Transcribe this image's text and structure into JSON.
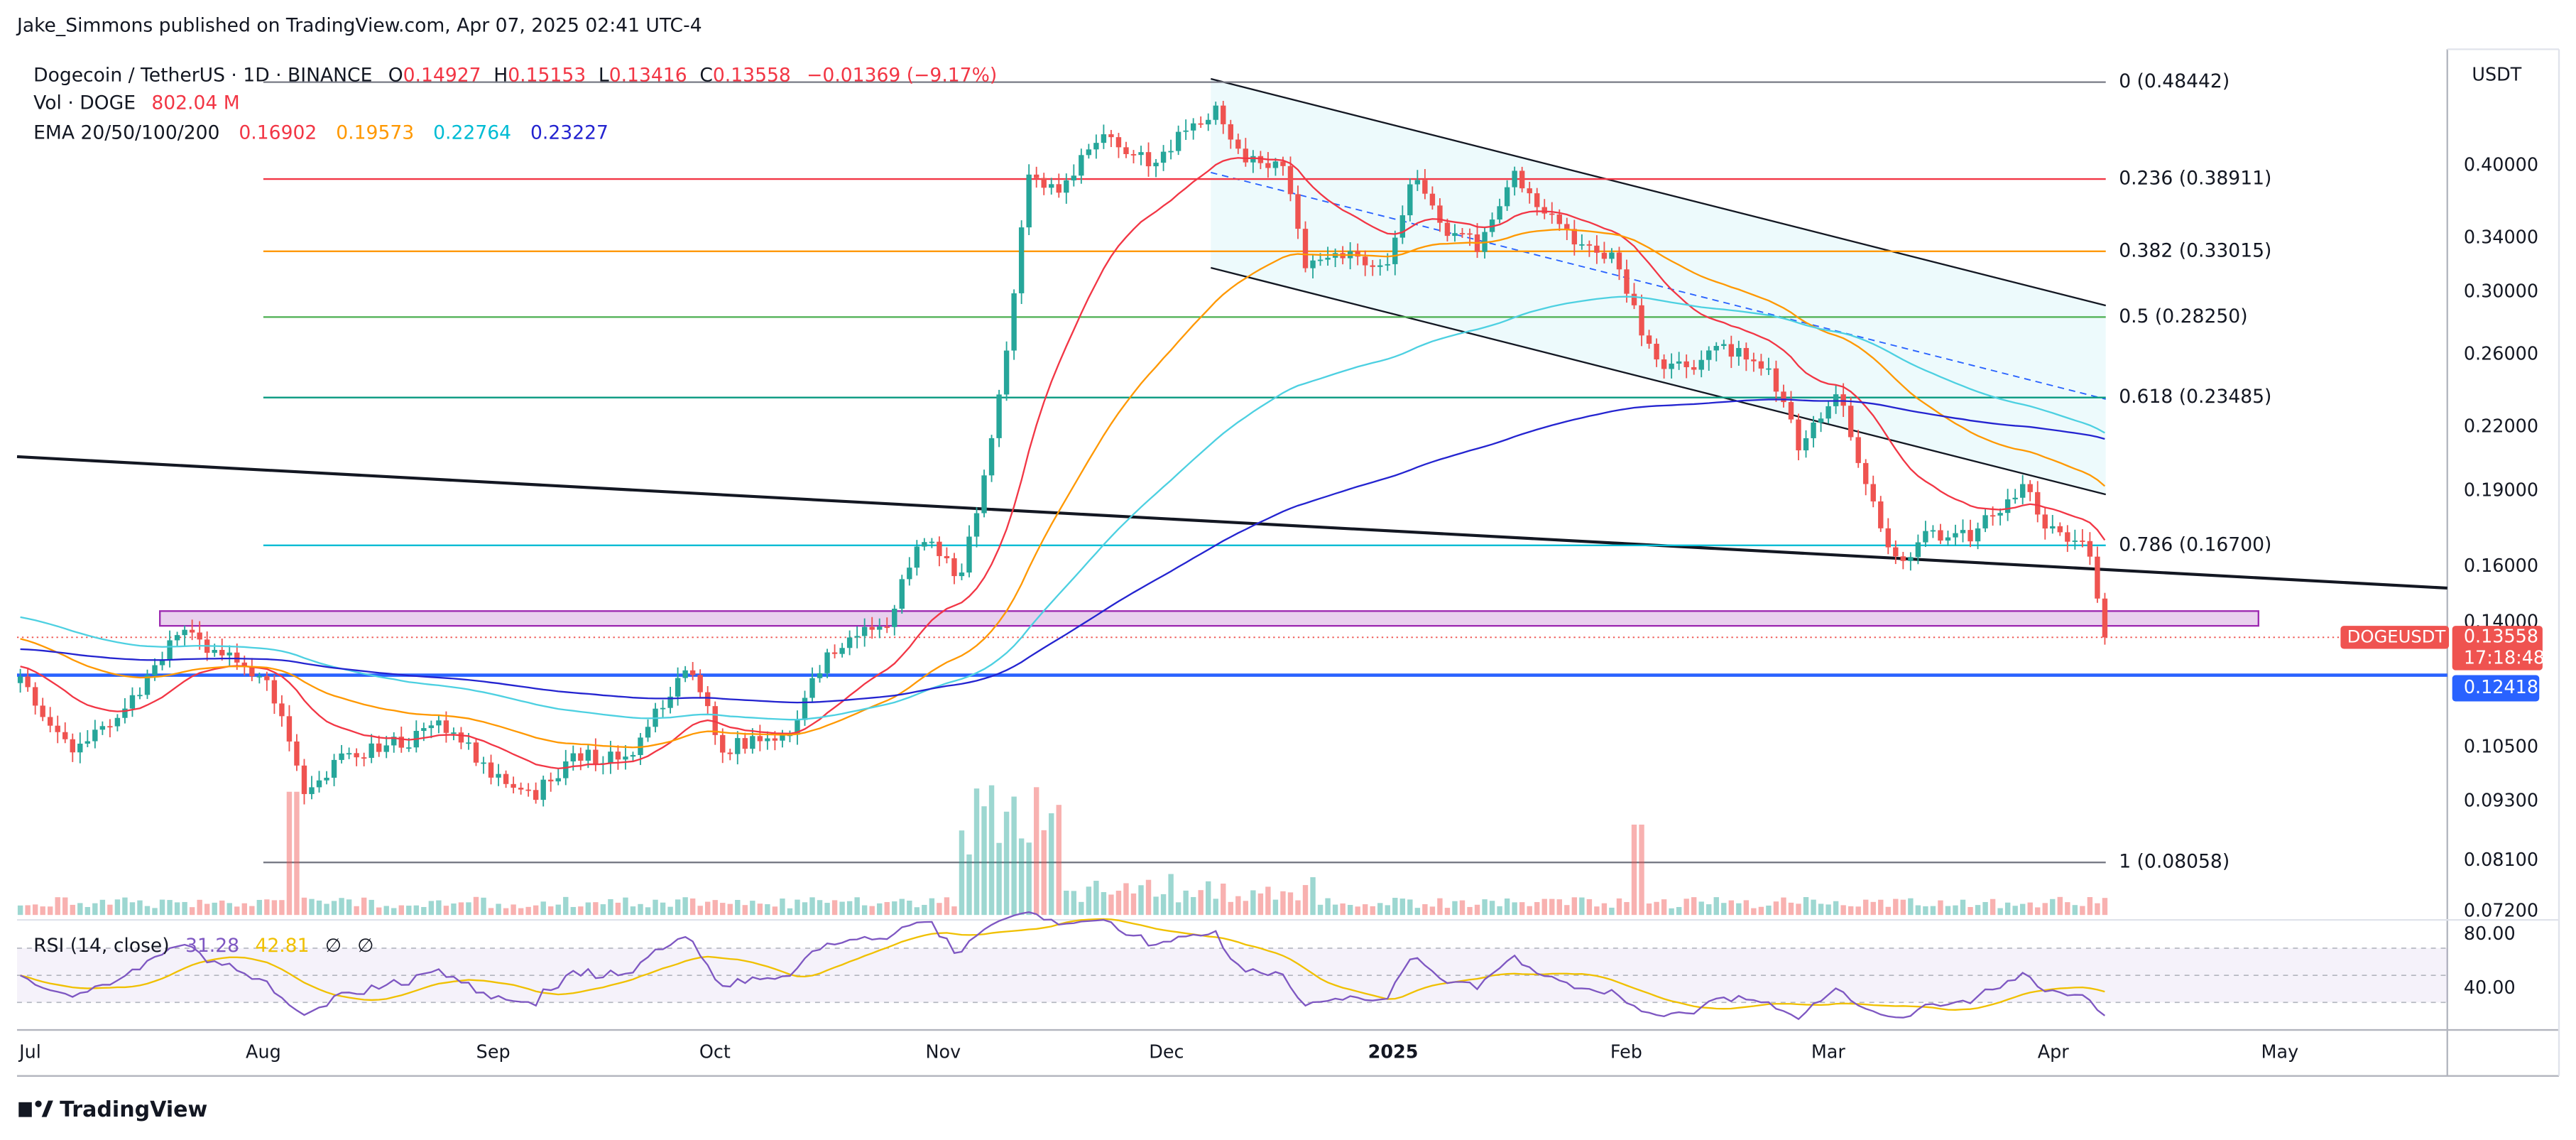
{
  "header": {
    "publisher": "Jake_Simmons published on TradingView.com, Apr 07, 2025 02:41 UTC-4"
  },
  "legend": {
    "symbol": "Dogecoin / TetherUS · 1D · BINANCE",
    "ohlc": [
      {
        "label": "O",
        "value": "0.14927"
      },
      {
        "label": "H",
        "value": "0.15153"
      },
      {
        "label": "L",
        "value": "0.13416"
      },
      {
        "label": "C",
        "value": "0.13558"
      }
    ],
    "change": "−0.01369 (−9.17%)",
    "volume": {
      "label": "Vol · DOGE",
      "value": "802.04 M"
    },
    "ema": {
      "label": "EMA 20/50/100/200",
      "values": [
        "0.16902",
        "0.19573",
        "0.22764",
        "0.23227"
      ]
    }
  },
  "price_axis": {
    "currency": "USDT",
    "labels": [
      "0.40000",
      "0.34000",
      "0.30000",
      "0.26000",
      "0.22000",
      "0.19000",
      "0.16000",
      "0.14000",
      "0.10500",
      "0.09300",
      "0.08100",
      "0.07200"
    ]
  },
  "price_tags": {
    "symbol": "DOGEUSDT",
    "price": "0.13558",
    "countdown": "17:18:48",
    "level": "0.12418"
  },
  "fib_levels": [
    "0 (0.48442)",
    "0.236 (0.38911)",
    "0.382 (0.33015)",
    "0.5 (0.28250)",
    "0.618 (0.23485)",
    "0.786 (0.16700)",
    "1 (0.08058)"
  ],
  "rsi": {
    "label": "RSI (14, close)",
    "value": "31.28",
    "ma": "42.81",
    "extra": [
      "∅",
      "∅"
    ],
    "axis": [
      "80.00",
      "40.00"
    ]
  },
  "time_axis": [
    "Jul",
    "Aug",
    "Sep",
    "Oct",
    "Nov",
    "Dec",
    "2025",
    "Feb",
    "Mar",
    "Apr",
    "May"
  ],
  "footer": {
    "brand": "TradingView"
  }
}
